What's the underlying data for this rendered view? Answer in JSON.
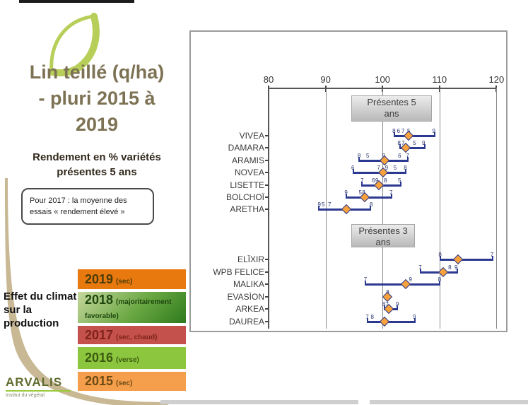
{
  "left_panel": {
    "title_lines": [
      "Lin teillé (q/ha)",
      "- pluri 2015 à",
      "2019"
    ],
    "subtitle_lines": [
      "Rendement en % variétés",
      "présentes 5 ans"
    ],
    "note_lines": [
      "Pour 2017 : la moyenne des",
      "essais « rendement élevé »"
    ],
    "climate_heading_lines": [
      "Effet du climat",
      "sur la",
      "production"
    ]
  },
  "legend": {
    "items": [
      {
        "year": "2019",
        "note": "(sec)",
        "color": "#e8790f"
      },
      {
        "year": "2018",
        "note": "(majoritairement favorable)",
        "color_top": "#c6d79e",
        "color_bottom": "#2e7a1e"
      },
      {
        "year": "2017",
        "note": "(sec, chaud)",
        "color": "#c4514b"
      },
      {
        "year": "2016",
        "note": "(verse)",
        "color": "#8cc63e"
      },
      {
        "year": "2015",
        "note": "(sec)",
        "color": "#f59e4b"
      }
    ]
  },
  "logo": {
    "name": "ARVALIS",
    "tagline": "Institut du végétal"
  },
  "chart_data": {
    "type": "scatter",
    "title": "Rendement en % variétés présentes 5 ans",
    "xlabel": "",
    "ylabel": "",
    "x_axis": {
      "min": 80,
      "max": 120,
      "ticks": [
        80,
        90,
        100,
        110,
        120
      ]
    },
    "bar_color": "#2b3990",
    "marker_color": "#f9a13a",
    "note": "chiffres = dernier chiffre de l'année (2015-2019), losange = moyenne pluriannuelle",
    "groups": [
      {
        "label_lines": [
          "Présentes 5",
          "ans"
        ],
        "varieties": [
          {
            "name": "VIVEA",
            "min": 102.0,
            "max": 109.3,
            "mean": 104.6,
            "points": [
              {
                "l": "8",
                "v": 102.0
              },
              {
                "l": "6",
                "v": 102.8
              },
              {
                "l": "7",
                "v": 103.6
              },
              {
                "l": "5",
                "v": 104.6
              },
              {
                "l": "9",
                "v": 109.0
              }
            ]
          },
          {
            "name": "DAMARA",
            "min": 102.9,
            "max": 107.5,
            "mean": 104.1,
            "points": [
              {
                "l": "8",
                "v": 102.9
              },
              {
                "l": "7",
                "v": 103.6
              },
              {
                "l": "5",
                "v": 105.6
              },
              {
                "l": "9",
                "v": 107.2
              }
            ]
          },
          {
            "name": "ARAMIS",
            "min": 95.8,
            "max": 104.6,
            "mean": 100.4,
            "points": [
              {
                "l": "8",
                "v": 95.9
              },
              {
                "l": "5",
                "v": 97.4
              },
              {
                "l": "9",
                "v": 100.2
              },
              {
                "l": "6",
                "v": 103.0
              },
              {
                "l": "7",
                "v": 104.4
              }
            ]
          },
          {
            "name": "NOVEA",
            "min": 94.8,
            "max": 104.2,
            "mean": 100.1,
            "points": [
              {
                "l": "6",
                "v": 94.8
              },
              {
                "l": "7",
                "v": 99.3
              },
              {
                "l": "9",
                "v": 100.7
              },
              {
                "l": "5",
                "v": 102.2
              },
              {
                "l": "8",
                "v": 104.0
              }
            ]
          },
          {
            "name": "LISETTE",
            "min": 96.3,
            "max": 103.3,
            "mean": 99.4,
            "points": [
              {
                "l": "7",
                "v": 96.4
              },
              {
                "l": "6",
                "v": 98.4
              },
              {
                "l": "9",
                "v": 99.0
              },
              {
                "l": "8",
                "v": 100.5
              },
              {
                "l": "5",
                "v": 103.0
              }
            ]
          },
          {
            "name": "BOLCHOÏ",
            "min": 93.5,
            "max": 101.7,
            "mean": 96.9,
            "points": [
              {
                "l": "9",
                "v": 93.6
              },
              {
                "l": "5",
                "v": 96.1
              },
              {
                "l": "8",
                "v": 96.7
              },
              {
                "l": "7",
                "v": 101.5
              }
            ]
          },
          {
            "name": "ARETHA",
            "min": 88.7,
            "max": 98.0,
            "mean": 93.6,
            "points": [
              {
                "l": "9",
                "v": 88.9
              },
              {
                "l": "5",
                "v": 89.6
              },
              {
                "l": "7",
                "v": 90.7
              },
              {
                "l": "8",
                "v": 98.0
              }
            ]
          }
        ]
      },
      {
        "label_lines": [
          "Présentes 3",
          "ans"
        ],
        "varieties": [
          {
            "name": "ELÏXIR",
            "min": 110.0,
            "max": 119.5,
            "mean": 113.2,
            "points": [
              {
                "l": "8",
                "v": 110.1
              },
              {
                "l": "7",
                "v": 119.2
              }
            ]
          },
          {
            "name": "WPB FELICE",
            "min": 106.5,
            "max": 113.2,
            "mean": 110.6,
            "points": [
              {
                "l": "7",
                "v": 106.6
              },
              {
                "l": "8",
                "v": 111.8
              },
              {
                "l": "9",
                "v": 112.9
              }
            ]
          },
          {
            "name": "MALIKA",
            "min": 96.9,
            "max": 110.2,
            "mean": 104.1,
            "points": [
              {
                "l": "7",
                "v": 97.0
              },
              {
                "l": "9",
                "v": 104.9
              },
              {
                "l": "8",
                "v": 110.0
              }
            ]
          },
          {
            "name": "EVASÌON",
            "min": 100.7,
            "max": 101.1,
            "mean": 100.9,
            "points": [
              {
                "l": "8",
                "v": 100.9
              }
            ]
          },
          {
            "name": "ARKEA",
            "min": 100.2,
            "max": 102.7,
            "mean": 101.1,
            "points": [
              {
                "l": "8",
                "v": 100.2
              },
              {
                "l": "7",
                "v": 100.8
              },
              {
                "l": "9",
                "v": 102.6
              }
            ]
          },
          {
            "name": "DAUREA",
            "min": 97.2,
            "max": 105.8,
            "mean": 100.4,
            "points": [
              {
                "l": "7",
                "v": 97.3
              },
              {
                "l": "8",
                "v": 98.2
              },
              {
                "l": "9",
                "v": 105.6
              }
            ]
          }
        ]
      }
    ]
  }
}
